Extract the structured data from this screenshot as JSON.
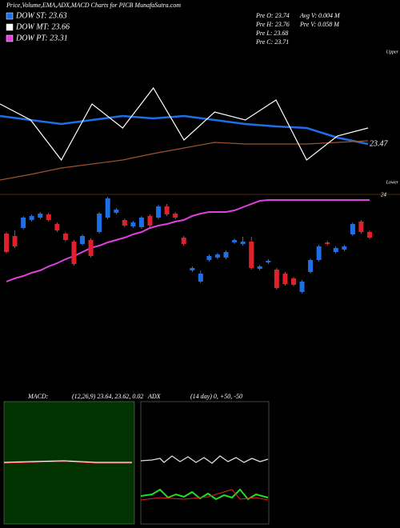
{
  "header": {
    "title": "Price,Volume,EMA,ADX,MACD Charts for PICB MunafaSutra.com",
    "legend": [
      {
        "label": "DOW ST: 23.63",
        "color": "#1e6ee6"
      },
      {
        "label": "DOW MT: 23.66",
        "color": "#ffffff"
      },
      {
        "label": "DOW PT: 23.31",
        "color": "#e040e0"
      }
    ],
    "info": [
      "Pre  O: 23.74",
      "Pre  H: 23.76",
      "Pre  L: 23.68",
      "Pre  C: 23.71"
    ],
    "info2": [
      "Avg V: 0.004  M",
      "Pre  V: 0.058  M"
    ],
    "upper": "Upper",
    "lower": "Lower"
  },
  "chart_data": [
    {
      "type": "line",
      "ylim": [
        22.97,
        24.52
      ],
      "yticks": [
        23.47
      ],
      "series": [
        {
          "color": "#1e6ee6",
          "values": [
            23.82,
            23.77,
            23.72,
            23.77,
            23.82,
            23.79,
            23.82,
            23.77,
            23.72,
            23.69,
            23.67,
            23.55,
            23.47
          ]
        },
        {
          "color": "#a0522d",
          "values": [
            23.02,
            23.09,
            23.17,
            23.22,
            23.27,
            23.35,
            23.42,
            23.49,
            23.47,
            23.47,
            23.47,
            23.49,
            23.51
          ]
        },
        {
          "color": "#ffffff",
          "values": [
            23.97,
            23.77,
            23.27,
            23.97,
            23.67,
            24.17,
            23.52,
            23.87,
            23.77,
            24.02,
            23.27,
            23.57,
            23.67
          ]
        }
      ]
    },
    {
      "type": "candlestick",
      "ylim": [
        22.7,
        24.2
      ],
      "yticks": [
        24
      ],
      "up_color": "#1e6ee6",
      "down_color": "#e0202a",
      "open": [
        23.51,
        23.48,
        23.58,
        23.68,
        23.71,
        23.75,
        23.63,
        23.51,
        23.41,
        23.38,
        23.43,
        23.53,
        23.71,
        23.77,
        23.68,
        23.6,
        23.59,
        23.73,
        23.71,
        23.85,
        23.76,
        23.46,
        23.05,
        22.91,
        23.18,
        23.21,
        23.21,
        23.4,
        23.38,
        23.41,
        23.07,
        23.15,
        23.06,
        23.01,
        22.95,
        22.78,
        23.03,
        23.18,
        23.4,
        23.28,
        23.31,
        23.5,
        23.66,
        23.53
      ],
      "close": [
        23.28,
        23.35,
        23.71,
        23.73,
        23.76,
        23.68,
        23.55,
        23.43,
        23.13,
        23.48,
        23.23,
        23.76,
        23.95,
        23.81,
        23.61,
        23.65,
        23.71,
        23.61,
        23.85,
        23.75,
        23.71,
        23.38,
        23.08,
        23.01,
        23.23,
        23.25,
        23.28,
        23.43,
        23.41,
        23.08,
        23.1,
        23.17,
        22.83,
        22.88,
        22.87,
        22.91,
        23.18,
        23.35,
        23.38,
        23.33,
        23.35,
        23.63,
        23.53,
        23.46
      ],
      "high": [
        23.53,
        23.55,
        23.73,
        23.75,
        23.78,
        23.77,
        23.65,
        23.53,
        23.43,
        23.5,
        23.45,
        23.78,
        23.97,
        23.83,
        23.7,
        23.67,
        23.73,
        23.75,
        23.87,
        23.88,
        23.78,
        23.48,
        23.1,
        23.05,
        23.25,
        23.27,
        23.3,
        23.45,
        23.47,
        23.47,
        23.12,
        23.19,
        23.08,
        23.03,
        22.97,
        22.93,
        23.2,
        23.37,
        23.42,
        23.35,
        23.37,
        23.65,
        23.68,
        23.55
      ],
      "low": [
        23.26,
        23.33,
        23.56,
        23.66,
        23.69,
        23.66,
        23.53,
        23.41,
        23.11,
        23.36,
        23.21,
        23.51,
        23.69,
        23.75,
        23.59,
        23.58,
        23.57,
        23.59,
        23.69,
        23.73,
        23.69,
        23.36,
        23.03,
        22.89,
        23.16,
        23.19,
        23.19,
        23.38,
        23.36,
        23.06,
        23.05,
        23.13,
        22.81,
        22.86,
        22.85,
        22.76,
        23.01,
        23.16,
        23.36,
        23.26,
        23.29,
        23.48,
        23.51,
        23.44
      ],
      "series": [
        {
          "color": "#e040e0",
          "values": [
            22.91,
            22.95,
            22.98,
            23.02,
            23.05,
            23.1,
            23.14,
            23.19,
            23.23,
            23.28,
            23.33,
            23.36,
            23.4,
            23.43,
            23.46,
            23.5,
            23.53,
            23.58,
            23.61,
            23.63,
            23.66,
            23.68,
            23.73,
            23.76,
            23.78,
            23.78,
            23.78,
            23.8,
            23.84,
            23.88,
            23.92,
            23.93,
            23.93,
            23.93,
            23.93,
            23.93,
            23.93,
            23.93,
            23.93,
            23.93,
            23.93,
            23.93,
            23.93,
            23.93
          ]
        }
      ]
    }
  ],
  "panels": {
    "macd_label": "MACD:",
    "macd_params": "(12,26,9) 23.64, 23.62, 0.02",
    "adx_label": "ADX",
    "adx_params": "(14  day) 0, +50, -50"
  }
}
